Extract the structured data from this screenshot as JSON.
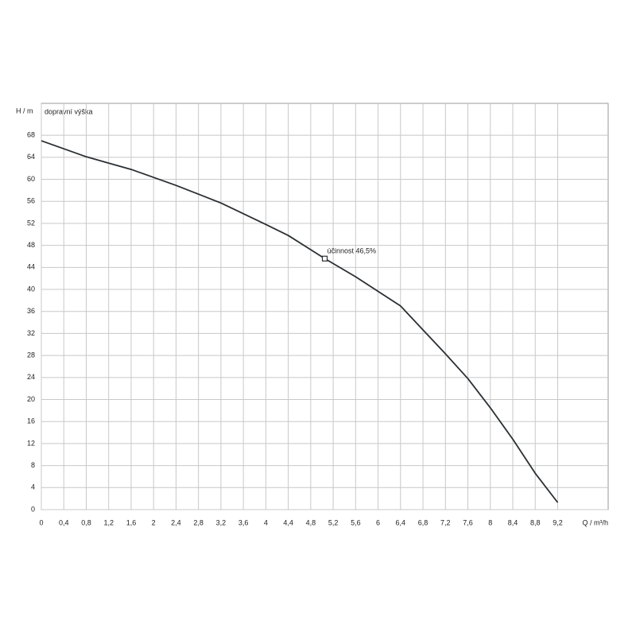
{
  "chart_data": {
    "type": "line",
    "y_label": "H / m",
    "x_label": "Q / m³/h",
    "xlim": [
      0,
      10.1
    ],
    "ylim": [
      0,
      73.8
    ],
    "xticks": [
      0,
      {
        "value": 0.4,
        "label": "0,4"
      },
      {
        "value": 0.8,
        "label": "0,8"
      },
      {
        "value": 1.2,
        "label": "1,2"
      },
      {
        "value": 1.6,
        "label": "1,6"
      },
      2,
      {
        "value": 2.4,
        "label": "2,4"
      },
      {
        "value": 2.8,
        "label": "2,8"
      },
      {
        "value": 3.2,
        "label": "3,2"
      },
      {
        "value": 3.6,
        "label": "3,6"
      },
      4,
      {
        "value": 4.4,
        "label": "4,4"
      },
      {
        "value": 4.8,
        "label": "4,8"
      },
      {
        "value": 5.2,
        "label": "5,2"
      },
      {
        "value": 5.6,
        "label": "5,6"
      },
      6,
      {
        "value": 6.4,
        "label": "6,4"
      },
      {
        "value": 6.8,
        "label": "6,8"
      },
      {
        "value": 7.2,
        "label": "7,2"
      },
      {
        "value": 7.6,
        "label": "7,6"
      },
      8,
      {
        "value": 8.4,
        "label": "8,4"
      },
      {
        "value": 8.8,
        "label": "8,8"
      },
      {
        "value": 9.2,
        "label": "9,2"
      }
    ],
    "yticks": [
      0,
      4,
      8,
      12,
      16,
      20,
      24,
      28,
      32,
      36,
      40,
      44,
      48,
      52,
      56,
      60,
      64,
      68
    ],
    "grid": true,
    "series": [
      {
        "name": "dopravní výška",
        "color": "#2a2f33",
        "x": [
          0,
          0.8,
          1.6,
          2.4,
          3.2,
          4,
          4.4,
          5.05,
          5.6,
          6.4,
          7.2,
          7.6,
          8,
          8.4,
          8.8,
          9.2
        ],
        "values": [
          67,
          64.1,
          61.8,
          58.9,
          55.7,
          51.8,
          49.8,
          45.6,
          42.3,
          37,
          28.3,
          23.8,
          18.5,
          12.8,
          6.6,
          1.3
        ]
      }
    ],
    "marker": {
      "x": 5.05,
      "y": 45.6,
      "label": "účinnost 46,5%"
    }
  }
}
